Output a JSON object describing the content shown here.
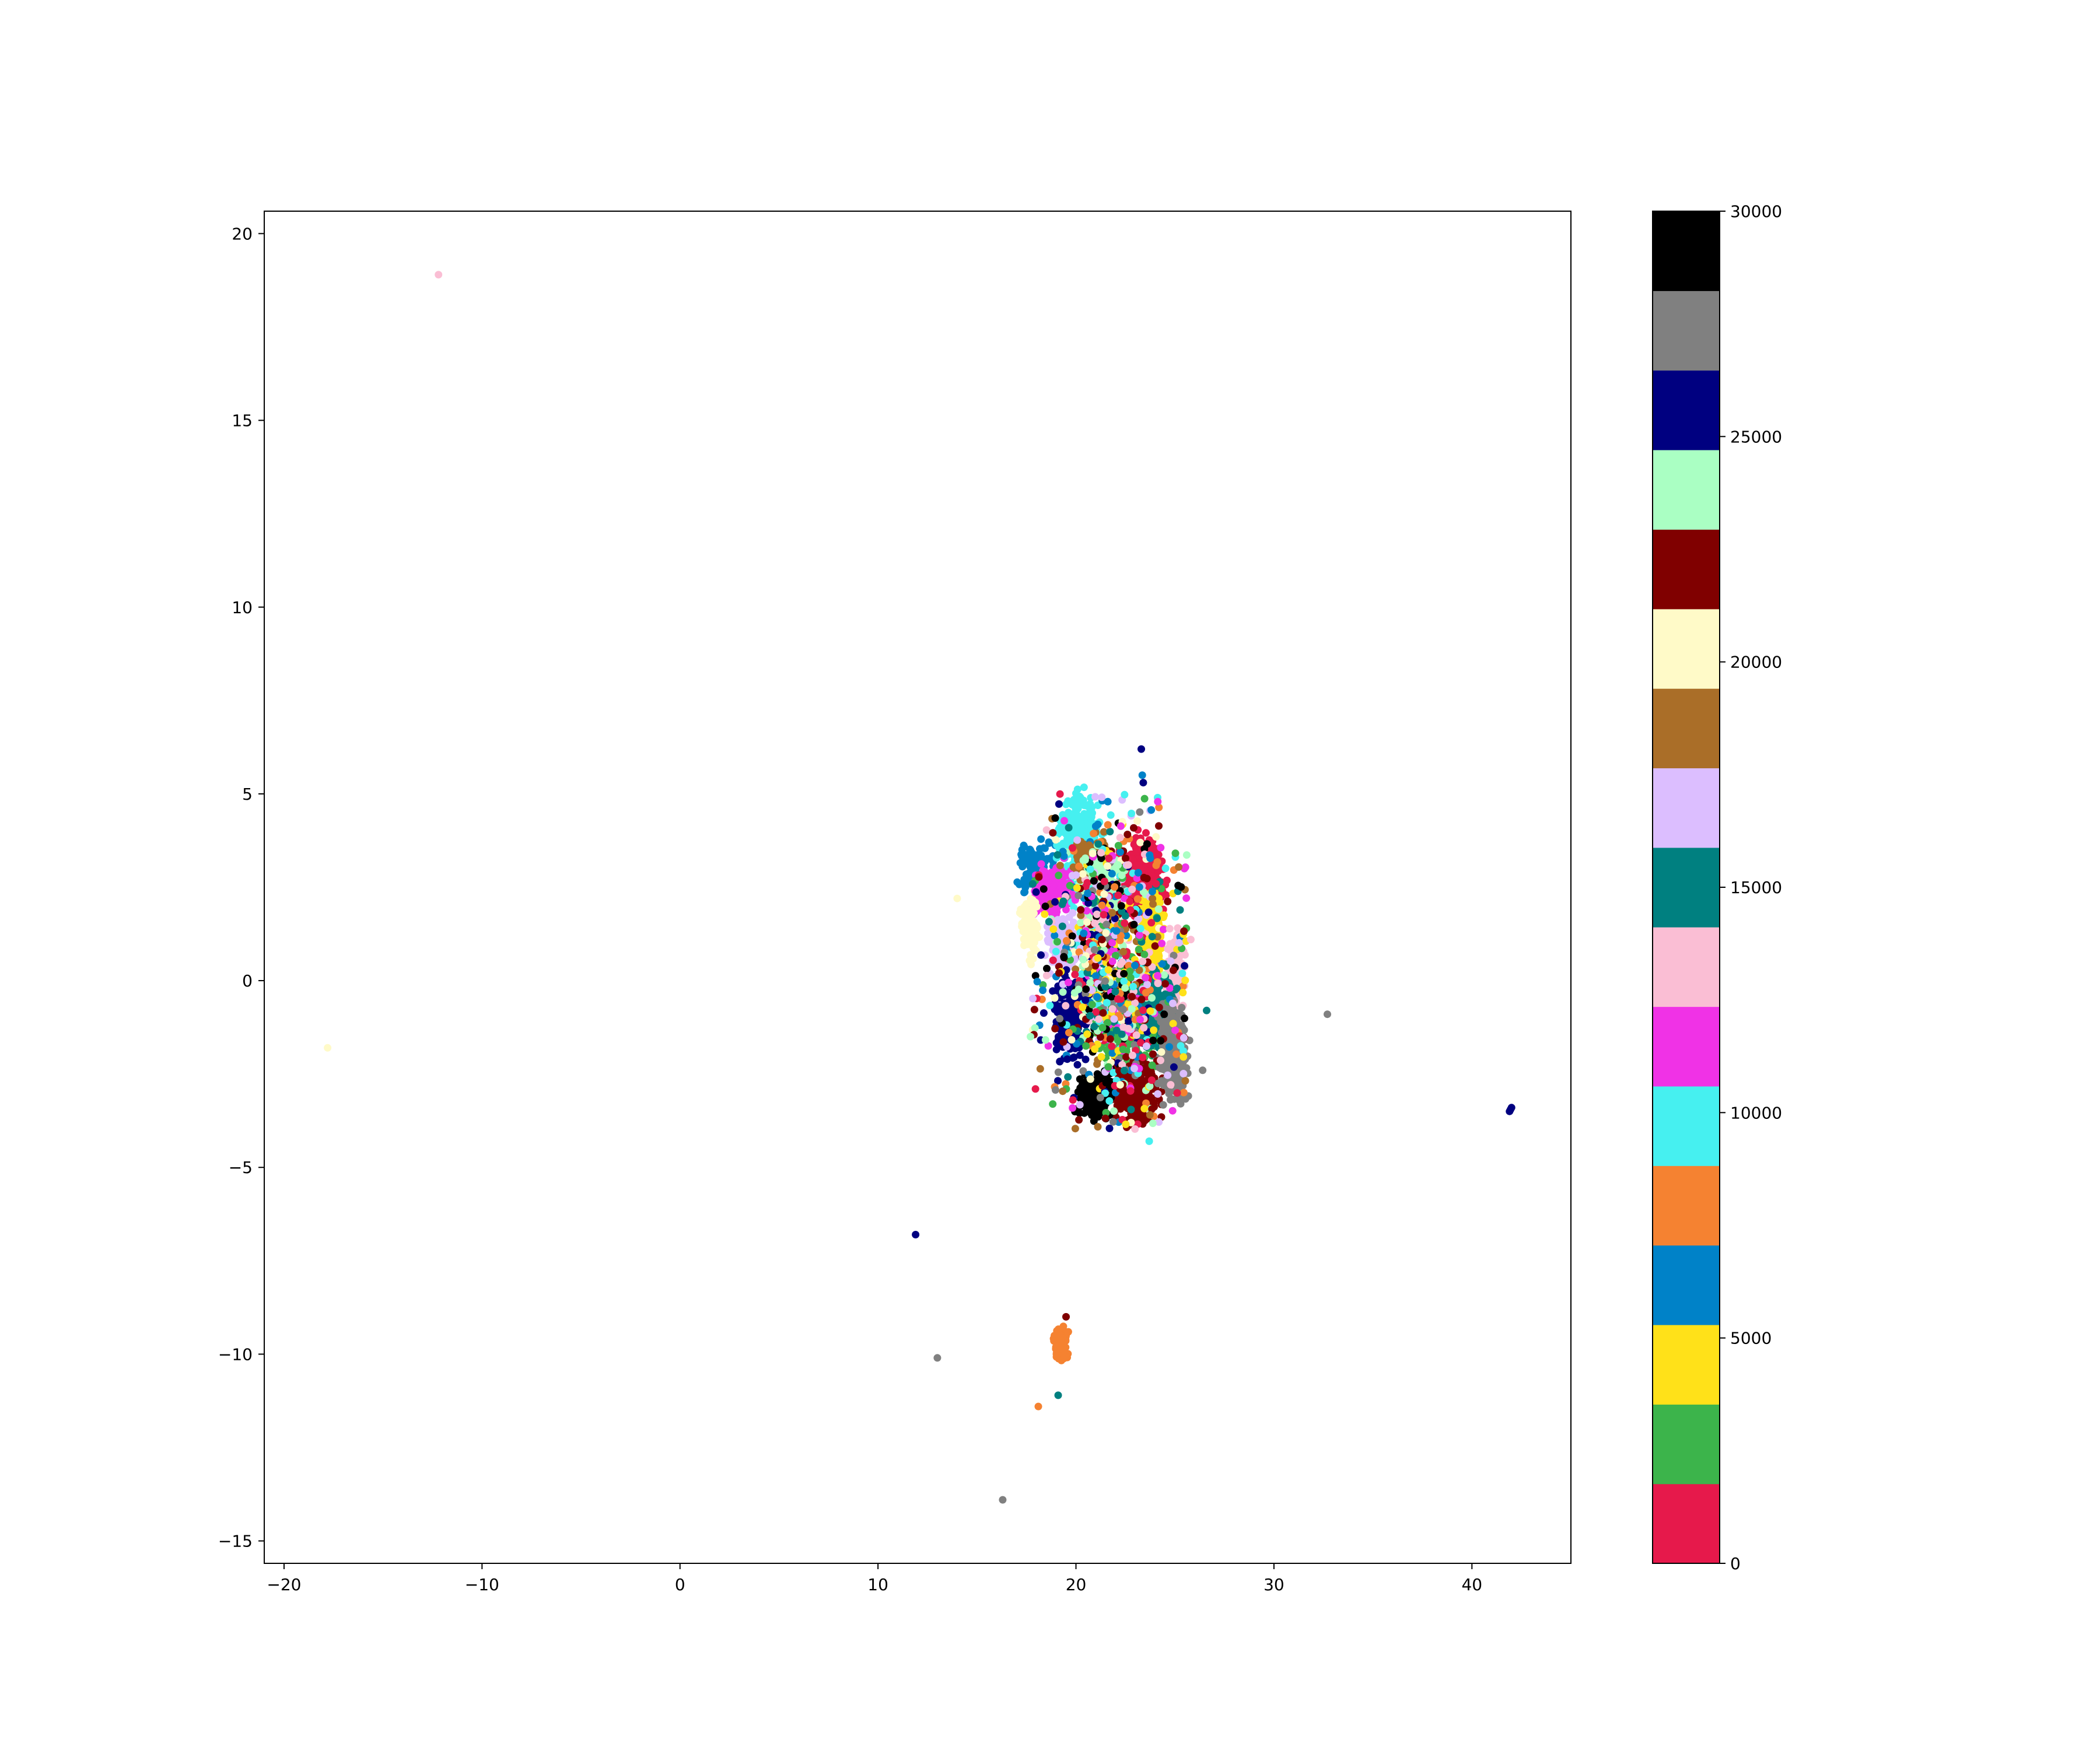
{
  "chart_data": {
    "type": "scatter",
    "title": "",
    "xlabel": "",
    "ylabel": "",
    "xlim": [
      -21,
      45
    ],
    "ylim": [
      -15.6,
      20.6
    ],
    "x_ticks": [
      -20,
      -10,
      0,
      10,
      20,
      30,
      40
    ],
    "x_tick_labels": [
      "−20",
      "−10",
      "0",
      "10",
      "20",
      "30",
      "40"
    ],
    "y_ticks": [
      -15,
      -10,
      -5,
      0,
      5,
      10,
      15,
      20
    ],
    "y_tick_labels": [
      "−15",
      "−10",
      "−5",
      "0",
      "5",
      "10",
      "15",
      "20"
    ],
    "grid": false,
    "colorbar": {
      "range": [
        0,
        30000
      ],
      "ticks": [
        0,
        5000,
        10000,
        15000,
        20000,
        25000,
        30000
      ],
      "tick_labels": [
        "0",
        "5000",
        "10000",
        "15000",
        "20000",
        "25000",
        "30000"
      ],
      "colors": [
        "#e6194b",
        "#3cb44b",
        "#ffe119",
        "#0082c8",
        "#f58231",
        "#46f0f0",
        "#f032e6",
        "#fabed4",
        "#008080",
        "#dcbeff",
        "#aa6e28",
        "#fffac8",
        "#800000",
        "#aaffc3",
        "#000080",
        "#808080",
        "#000000"
      ]
    },
    "clusters": [
      {
        "cx": 23.4,
        "cy": 2.8,
        "rx": 0.9,
        "ry": 0.9,
        "n": 320,
        "color": 0
      },
      {
        "cx": 22.6,
        "cy": -1.2,
        "rx": 1.4,
        "ry": 1.0,
        "n": 380,
        "color": 1
      },
      {
        "cx": 23.8,
        "cy": 1.2,
        "rx": 0.5,
        "ry": 0.9,
        "n": 180,
        "color": 2
      },
      {
        "cx": 18.0,
        "cy": 3.0,
        "rx": 0.7,
        "ry": 0.6,
        "n": 130,
        "color": 3
      },
      {
        "cx": 20.2,
        "cy": 3.8,
        "rx": 0.9,
        "ry": 1.0,
        "n": 260,
        "color": 5
      },
      {
        "cx": 18.9,
        "cy": 2.3,
        "rx": 0.8,
        "ry": 0.6,
        "n": 180,
        "color": 6
      },
      {
        "cx": 25.0,
        "cy": 0.3,
        "rx": 0.4,
        "ry": 0.8,
        "n": 110,
        "color": 7
      },
      {
        "cx": 24.0,
        "cy": -0.8,
        "rx": 0.9,
        "ry": 0.9,
        "n": 200,
        "color": 8
      },
      {
        "cx": 19.5,
        "cy": 1.0,
        "rx": 0.9,
        "ry": 0.7,
        "n": 150,
        "color": 9
      },
      {
        "cx": 20.8,
        "cy": 3.3,
        "rx": 0.8,
        "ry": 0.5,
        "n": 120,
        "color": 10
      },
      {
        "cx": 17.6,
        "cy": 1.4,
        "rx": 0.4,
        "ry": 0.7,
        "n": 100,
        "color": 11
      },
      {
        "cx": 23.0,
        "cy": -3.0,
        "rx": 1.0,
        "ry": 0.7,
        "n": 300,
        "color": 12
      },
      {
        "cx": 21.3,
        "cy": 2.4,
        "rx": 0.9,
        "ry": 0.9,
        "n": 230,
        "color": 13
      },
      {
        "cx": 19.7,
        "cy": -1.0,
        "rx": 0.7,
        "ry": 0.9,
        "n": 220,
        "color": 14
      },
      {
        "cx": 24.9,
        "cy": -1.9,
        "rx": 0.6,
        "ry": 1.1,
        "n": 260,
        "color": 15
      },
      {
        "cx": 21.0,
        "cy": -3.1,
        "rx": 0.7,
        "ry": 0.5,
        "n": 240,
        "color": 16
      },
      {
        "cx": 21.8,
        "cy": 0.4,
        "rx": 1.8,
        "ry": 2.8,
        "n": 700,
        "color": -1
      },
      {
        "cx": 19.2,
        "cy": -9.7,
        "rx": 0.3,
        "ry": 0.4,
        "n": 90,
        "color": 4
      }
    ],
    "outliers": [
      {
        "x": -12.2,
        "y": 18.9,
        "color": 7
      },
      {
        "x": -17.8,
        "y": -1.8,
        "color": 11
      },
      {
        "x": 14.0,
        "y": 2.2,
        "color": 11
      },
      {
        "x": 32.7,
        "y": -0.9,
        "color": 15
      },
      {
        "x": 41.9,
        "y": -3.5,
        "color": 14
      },
      {
        "x": 42.0,
        "y": -3.4,
        "color": 14
      },
      {
        "x": 41.95,
        "y": -3.45,
        "color": 14
      },
      {
        "x": 11.9,
        "y": -6.8,
        "color": 14
      },
      {
        "x": 13.0,
        "y": -10.1,
        "color": 15
      },
      {
        "x": 18.1,
        "y": -11.4,
        "color": 4
      },
      {
        "x": 19.1,
        "y": -11.1,
        "color": 8
      },
      {
        "x": 16.3,
        "y": -13.9,
        "color": 15
      },
      {
        "x": 19.5,
        "y": -9.0,
        "color": 12
      },
      {
        "x": 23.3,
        "y": 6.2,
        "color": 14
      },
      {
        "x": 23.35,
        "y": 5.5,
        "color": 3
      },
      {
        "x": 23.4,
        "y": 5.3,
        "color": 14
      },
      {
        "x": 23.7,
        "y": -4.3,
        "color": 5
      },
      {
        "x": 26.6,
        "y": -0.8,
        "color": 8
      },
      {
        "x": 26.4,
        "y": -2.4,
        "color": 15
      },
      {
        "x": 25.8,
        "y": 1.1,
        "color": 7
      },
      {
        "x": 17.7,
        "y": -1.5,
        "color": 13
      }
    ]
  }
}
